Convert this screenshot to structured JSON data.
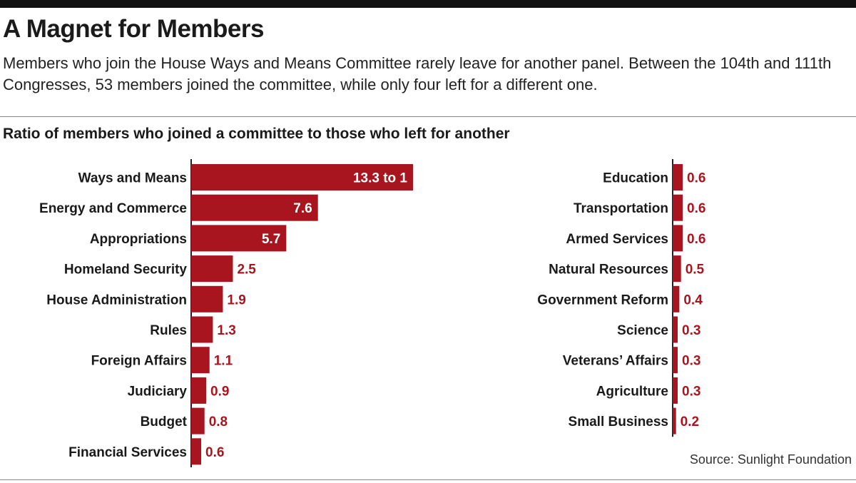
{
  "header": {
    "title": "A Magnet for Members",
    "subtitle": "Members who join the House Ways and Means Committee rarely leave for another panel. Between the 104th and 111th Congresses, 53 members joined the committee, while only four left for a different one."
  },
  "colors": {
    "bar": "#a8151e",
    "axis": "#222222",
    "label_inside": "#ffffff",
    "label_outside": "#a8151e"
  },
  "source": "Source: Sunlight Foundation",
  "chart_data": {
    "type": "bar",
    "orientation": "horizontal",
    "title": "Ratio of members who joined a committee to those who left for another",
    "xlim": [
      0,
      13.3
    ],
    "grid": false,
    "panels": [
      {
        "categories": [
          "Ways and Means",
          "Energy and Commerce",
          "Appropriations",
          "Homeland Security",
          "House Administration",
          "Rules",
          "Foreign Affairs",
          "Judiciary",
          "Budget",
          "Financial Services"
        ],
        "values": [
          13.3,
          7.6,
          5.7,
          2.5,
          1.9,
          1.3,
          1.1,
          0.9,
          0.8,
          0.6
        ],
        "value_labels": [
          "13.3 to 1",
          "7.6",
          "5.7",
          "2.5",
          "1.9",
          "1.3",
          "1.1",
          "0.9",
          "0.8",
          "0.6"
        ]
      },
      {
        "categories": [
          "Education",
          "Transportation",
          "Armed Services",
          "Natural Resources",
          "Government Reform",
          "Science",
          "Veterans’ Affairs",
          "Agriculture",
          "Small Business"
        ],
        "values": [
          0.6,
          0.6,
          0.6,
          0.5,
          0.4,
          0.3,
          0.3,
          0.3,
          0.2
        ],
        "value_labels": [
          "0.6",
          "0.6",
          "0.6",
          "0.5",
          "0.4",
          "0.3",
          "0.3",
          "0.3",
          "0.2"
        ]
      }
    ]
  }
}
